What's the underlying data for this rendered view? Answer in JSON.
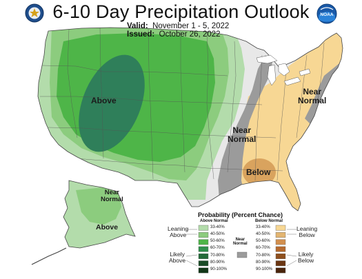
{
  "title": "6-10 Day Precipitation Outlook",
  "valid_label": "Valid:",
  "valid_value": "November 1 - 5, 2022",
  "issued_label": "Issued:",
  "issued_value": "October 26, 2022",
  "map_labels": {
    "above": "Above",
    "near_normal_central": "Near\nNormal",
    "near_normal_northeast": "Near\nNormal",
    "below": "Below",
    "near_normal_alaska": "Near\nNormal",
    "above_alaska": "Above"
  },
  "legend": {
    "title": "Probability (Percent Chance)",
    "above_header": "Above Normal",
    "below_header": "Below Normal",
    "near_header": "Near\nNormal",
    "leaning_above": "Leaning\nAbove",
    "likely_above": "Likely\nAbove",
    "leaning_below": "Leaning\nBelow",
    "likely_below": "Likely\nBelow",
    "ranges": [
      "33-40%",
      "40-50%",
      "50-60%",
      "60-70%",
      "70-80%",
      "80-90%",
      "90-100%"
    ],
    "above_colors": [
      "#b3dcab",
      "#8ccc7e",
      "#4eb548",
      "#2f8f4c",
      "#246b3a",
      "#1a4c27",
      "#123718"
    ],
    "below_colors": [
      "#f7d794",
      "#e3b571",
      "#d28f4e",
      "#b66a2e",
      "#8f4f1d",
      "#6b3612",
      "#4a250c"
    ],
    "near_color": "#9b9b9b"
  },
  "map_colors": {
    "above_33": "#b3dcab",
    "above_40": "#8ccc7e",
    "above_50": "#4eb548",
    "above_60": "#2f7f5a",
    "near": "#9b9b9b",
    "below_33": "#f7d794",
    "below_40": "#d9a35e",
    "base": "#e8e8e8",
    "border": "#444444"
  },
  "logos": [
    "doc-seal-icon",
    "noaa-logo-icon"
  ]
}
